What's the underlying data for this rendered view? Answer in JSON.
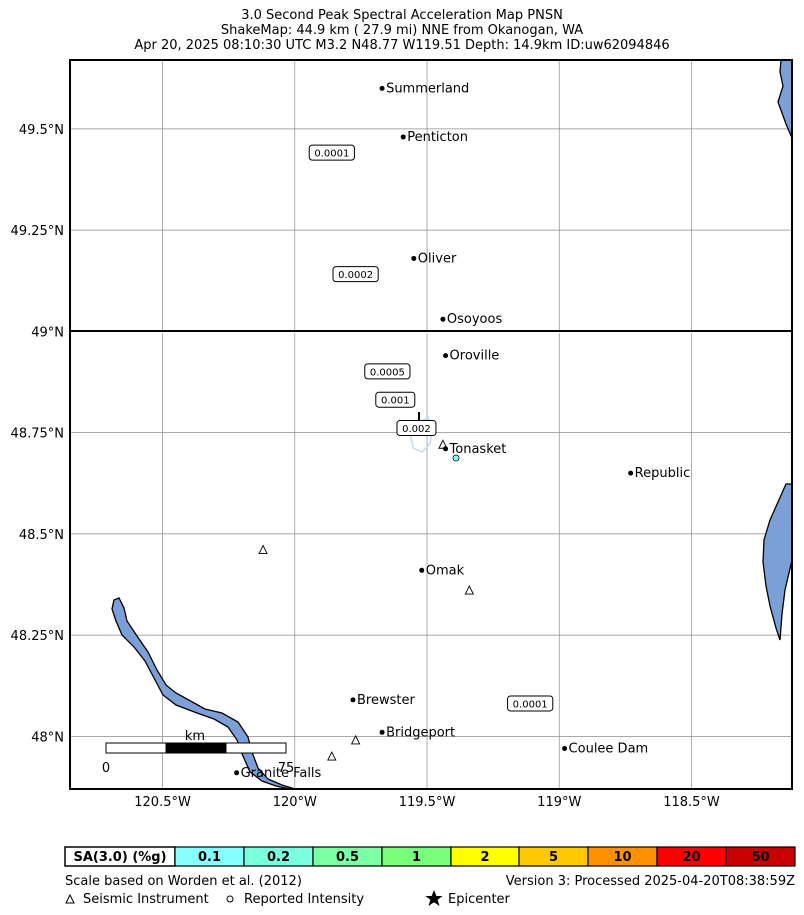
{
  "header": {
    "title": "3.0 Second Peak Spectral Acceleration Map PNSN",
    "subtitle": "ShakeMap: 44.9 km (  27.9 mi) NNE from Okanogan, WA",
    "event_line": "Apr 20, 2025 08:10:30 UTC M3.2 N48.77 W119.51 Depth: 14.9km ID:uw62094846"
  },
  "map": {
    "lon_range": [
      -120.85,
      -118.12
    ],
    "lat_range": [
      47.87,
      49.67
    ],
    "x_ticks": [
      {
        "value": -120.5,
        "label": "120.5°W"
      },
      {
        "value": -120.0,
        "label": "120°W"
      },
      {
        "value": -119.5,
        "label": "119.5°W"
      },
      {
        "value": -119.0,
        "label": "119°W"
      },
      {
        "value": -118.5,
        "label": "118.5°W"
      }
    ],
    "y_ticks": [
      {
        "value": 49.5,
        "label": "49.5°N"
      },
      {
        "value": 49.25,
        "label": "49.25°N"
      },
      {
        "value": 49.0,
        "label": "49°N"
      },
      {
        "value": 48.75,
        "label": "48.75°N"
      },
      {
        "value": 48.5,
        "label": "48.5°N"
      },
      {
        "value": 48.25,
        "label": "48.25°N"
      },
      {
        "value": 48.0,
        "label": "48°N"
      }
    ],
    "cities": [
      {
        "name": "Summerland",
        "lon": -119.67,
        "lat": 49.6
      },
      {
        "name": "Penticton",
        "lon": -119.59,
        "lat": 49.48
      },
      {
        "name": "Oliver",
        "lon": -119.55,
        "lat": 49.18
      },
      {
        "name": "Osoyoos",
        "lon": -119.44,
        "lat": 49.03
      },
      {
        "name": "Oroville",
        "lon": -119.43,
        "lat": 48.94
      },
      {
        "name": "Tonasket",
        "lon": -119.43,
        "lat": 48.71
      },
      {
        "name": "Republic",
        "lon": -118.73,
        "lat": 48.65
      },
      {
        "name": "Omak",
        "lon": -119.52,
        "lat": 48.41
      },
      {
        "name": "Brewster",
        "lon": -119.78,
        "lat": 48.09
      },
      {
        "name": "Bridgeport",
        "lon": -119.67,
        "lat": 48.01
      },
      {
        "name": "Coulee Dam",
        "lon": -118.98,
        "lat": 47.97
      },
      {
        "name": "Granite Falls",
        "lon": -120.22,
        "lat": 47.91
      }
    ],
    "contour_labels": [
      {
        "text": "0.0001",
        "lon": -119.86,
        "lat": 49.44
      },
      {
        "text": "0.0002",
        "lon": -119.77,
        "lat": 49.14
      },
      {
        "text": "0.0005",
        "lon": -119.65,
        "lat": 48.9
      },
      {
        "text": "0.001",
        "lon": -119.62,
        "lat": 48.83
      },
      {
        "text": "0.002",
        "lon": -119.54,
        "lat": 48.76
      },
      {
        "text": "0.0001",
        "lon": -119.11,
        "lat": 48.08
      }
    ],
    "stations": [
      {
        "lon": -120.12,
        "lat": 48.46
      },
      {
        "lon": -119.34,
        "lat": 48.36
      },
      {
        "lon": -119.86,
        "lat": 47.95
      },
      {
        "lon": -119.77,
        "lat": 47.99
      },
      {
        "lon": -119.44,
        "lat": 48.72
      }
    ],
    "scale_bar": {
      "unit": "km",
      "min_label": "0",
      "max_label": "75"
    }
  },
  "legend": {
    "label": "SA(3.0) (%g)",
    "bins": [
      {
        "label": "0.1",
        "color": "#88ffff"
      },
      {
        "label": "0.2",
        "color": "#7affdf"
      },
      {
        "label": "0.5",
        "color": "#7dffa6"
      },
      {
        "label": "1",
        "color": "#7aff7a"
      },
      {
        "label": "2",
        "color": "#ffff00"
      },
      {
        "label": "5",
        "color": "#ffc800"
      },
      {
        "label": "10",
        "color": "#ff9100"
      },
      {
        "label": "20",
        "color": "#ff0000"
      },
      {
        "label": "50",
        "color": "#c80000"
      }
    ]
  },
  "footer": {
    "scale_note": "Scale based on Worden et al. (2012)",
    "version": "Version 3: Processed 2025-04-20T08:38:59Z",
    "key_instrument": "Seismic Instrument",
    "key_intensity": "Reported Intensity",
    "key_epicenter": "Epicenter"
  },
  "colors": {
    "water": "#7b9fd6",
    "grid": "#8c8c8c",
    "border": "#000000"
  }
}
